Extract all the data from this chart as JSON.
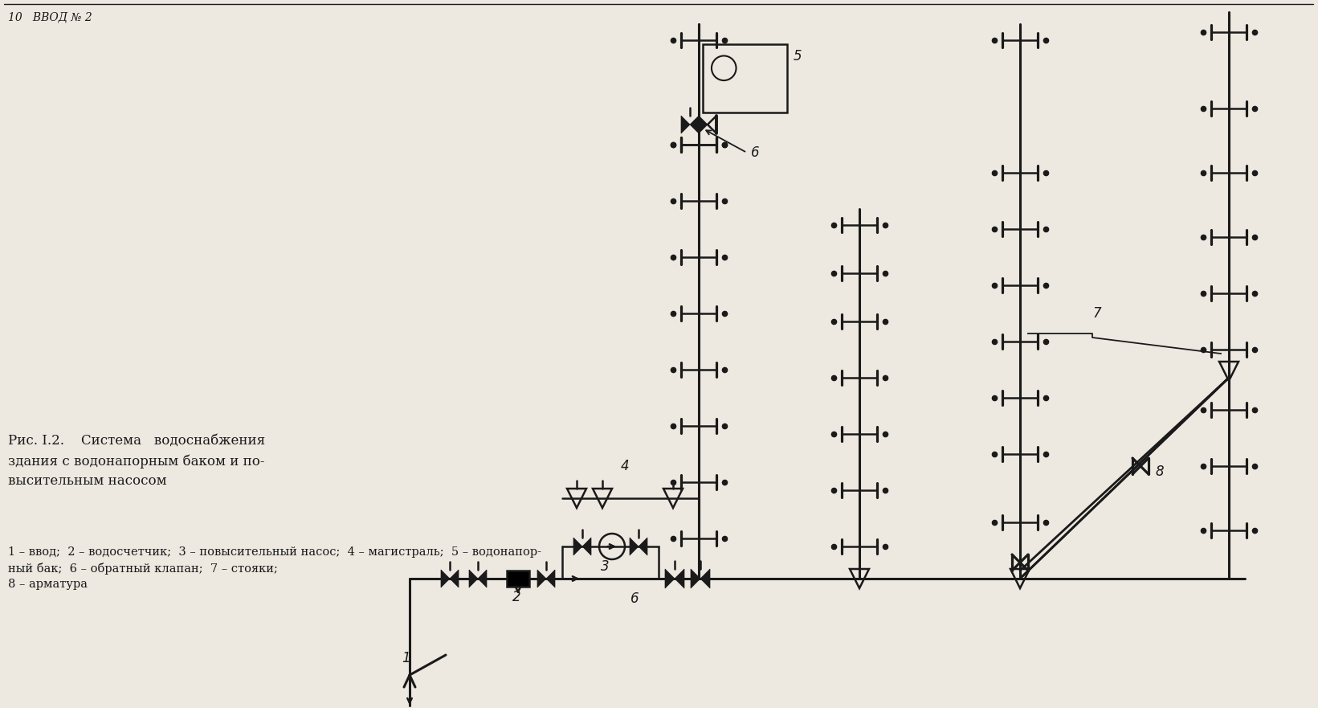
{
  "bg_color": "#ede8e0",
  "line_color": "#1a1a1a",
  "fig_width": 16.41,
  "fig_height": 8.81,
  "header_text": "10   ВВОД № 2",
  "caption_title": "Рис. I.2.    Система   водоснабжения\nздания с водонапорным баком и по-\nвысительным насосом",
  "caption_body": "1 – ввод;  2 – водосчетчик;  3 – повысительный насос;  4 – магистраль;  5 – водонапор-\nный бак;  6 – обратный клапан;  7 – стояки;\n8 – арматура"
}
